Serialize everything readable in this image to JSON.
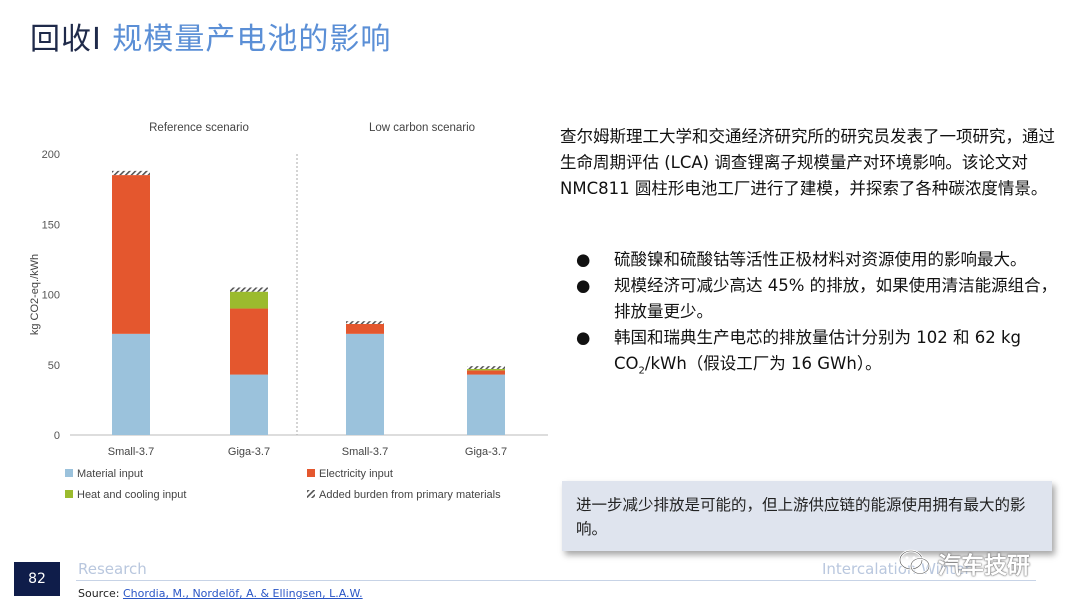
{
  "title": {
    "prefix": "回收I",
    "main": "规模量产电池的影响"
  },
  "paragraph": "查尔姆斯理工大学和交通经济研究所的研究员发表了一项研究，通过生命周期评估 (LCA) 调查锂离子规模量产对环境影响。该论文对 NMC811 圆柱形电池工厂进行了建模，并探索了各种碳浓度情景。",
  "bullets": [
    "硫酸镍和硫酸钴等活性正极材料对资源使用的影响最大。",
    "规模经济可减少高达 45% 的排放，如果使用清洁能源组合，排放量更少。"
  ],
  "bullet3": {
    "pre": "韩国和瑞典生产电芯的排放量估计分别为 102 和 62 kg CO",
    "sub": "2",
    "post": "/kWh（假设工厂为 16 GWh）。"
  },
  "callout": "进一步减少排放是可能的，但上游供应链的能源使用拥有最大的影响。",
  "footer": {
    "page": "82",
    "left_label": "Research",
    "right_label": "Intercalation Winter",
    "source_prefix": "Source: ",
    "source_link": "Chordia, M., Nordelöf, A. & Ellingsen, L.A.W."
  },
  "watermark": "汽车技研",
  "icons": {
    "watermark": "wechat-icon"
  },
  "colors": {
    "material": "#9bc2dc",
    "electricity": "#e4572e",
    "heat": "#9bbb2e",
    "added": "#ffffff",
    "title_accent": "#5b8fd6"
  },
  "chart_data": {
    "type": "bar",
    "stacked": true,
    "panels": [
      "Reference scenario",
      "Low carbon scenario"
    ],
    "categories": [
      "Small-3.7",
      "Giga-3.7",
      "Small-3.7",
      "Giga-3.7"
    ],
    "category_panel": [
      0,
      0,
      1,
      1
    ],
    "series": [
      {
        "name": "Material input",
        "values": [
          72,
          43,
          72,
          43
        ]
      },
      {
        "name": "Electricity input",
        "values": [
          113,
          47,
          7,
          3
        ]
      },
      {
        "name": "Heat and cooling input",
        "values": [
          0,
          12,
          0,
          1
        ]
      },
      {
        "name": "Added burden from primary materials",
        "values": [
          3,
          3,
          2,
          2
        ]
      }
    ],
    "ylabel": "kg CO2-eq./kWh",
    "yticks": [
      0,
      50,
      100,
      150,
      200
    ],
    "ylim": [
      0,
      200
    ],
    "legend_position": "bottom"
  }
}
